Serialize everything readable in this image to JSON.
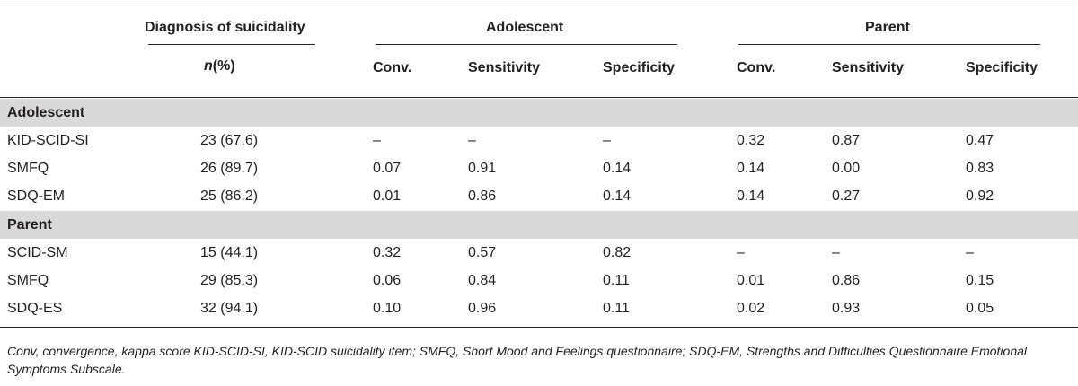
{
  "header": {
    "diagnosis": "Diagnosis of suicidality",
    "adolescent": "Adolescent",
    "parent": "Parent",
    "n_italic": "n",
    "n_rest": "(%)",
    "columns": [
      "Conv.",
      "Sensitivity",
      "Specificity",
      "Conv.",
      "Sensitivity",
      "Specificity"
    ]
  },
  "sections": [
    {
      "label": "Adolescent",
      "rows": [
        {
          "name": "KID-SCID-SI",
          "n": "23 (67.6)",
          "vals": [
            "–",
            "–",
            "–",
            "0.32",
            "0.87",
            "0.47"
          ]
        },
        {
          "name": "SMFQ",
          "n": "26 (89.7)",
          "vals": [
            "0.07",
            "0.91",
            "0.14",
            "0.14",
            "0.00",
            "0.83"
          ]
        },
        {
          "name": "SDQ-EM",
          "n": "25 (86.2)",
          "vals": [
            "0.01",
            "0.86",
            "0.14",
            "0.14",
            "0.27",
            "0.92"
          ]
        }
      ]
    },
    {
      "label": "Parent",
      "rows": [
        {
          "name": "SCID-SM",
          "n": "15 (44.1)",
          "vals": [
            "0.32",
            "0.57",
            "0.82",
            "–",
            "–",
            "–"
          ]
        },
        {
          "name": "SMFQ",
          "n": "29 (85.3)",
          "vals": [
            "0.06",
            "0.84",
            "0.11",
            "0.01",
            "0.86",
            "0.15"
          ]
        },
        {
          "name": "SDQ-ES",
          "n": "32 (94.1)",
          "vals": [
            "0.10",
            "0.96",
            "0.11",
            "0.02",
            "0.93",
            "0.05"
          ]
        }
      ]
    }
  ],
  "footnote": "Conv, convergence, kappa score KID-SCID-SI, KID-SCID suicidality item; SMFQ, Short Mood and Feelings questionnaire; SDQ-EM, Strengths and Difficulties Questionnaire Emotional Symptoms Subscale."
}
